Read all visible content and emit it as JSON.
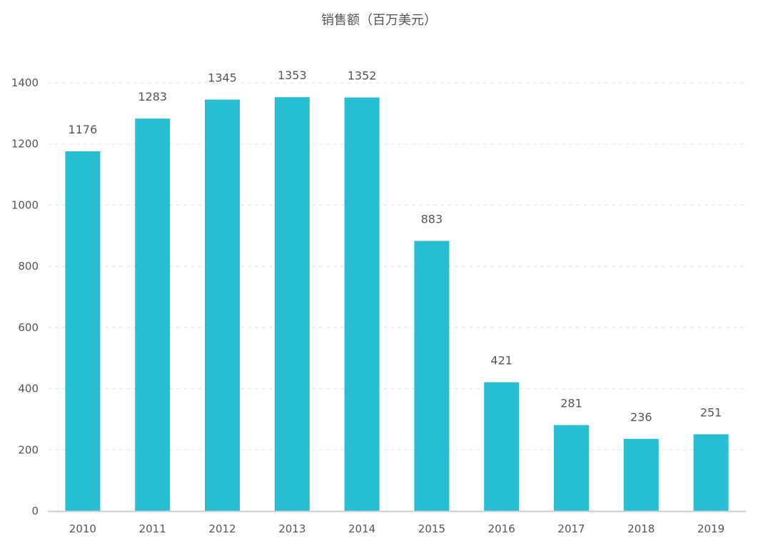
{
  "chart_data": {
    "type": "bar",
    "title": "销售额（百万美元）",
    "xlabel": "",
    "ylabel": "",
    "categories": [
      "2010",
      "2011",
      "2012",
      "2013",
      "2014",
      "2015",
      "2016",
      "2017",
      "2018",
      "2019"
    ],
    "values": [
      1176,
      1283,
      1345,
      1353,
      1352,
      883,
      421,
      281,
      236,
      251
    ],
    "ylim": [
      0,
      1400
    ],
    "yticks": [
      0,
      200,
      400,
      600,
      800,
      1000,
      1200,
      1400
    ],
    "data_labels": true,
    "grid": "horizontal-dashed",
    "legend": "none",
    "colors": {
      "bar": "#27bed4",
      "grid": "#e3e3e3",
      "axis": "#cccccc",
      "tick_text": "#555555",
      "label_text": "#555555"
    }
  }
}
